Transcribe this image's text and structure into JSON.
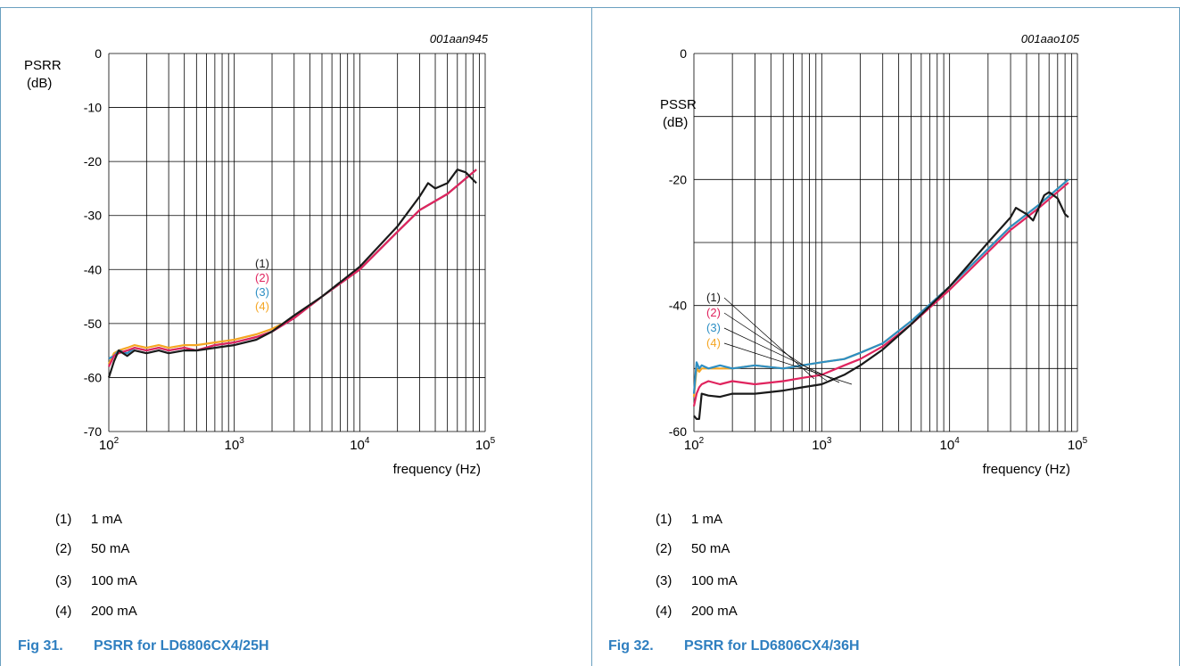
{
  "colors": {
    "curve1": "#1a1a1a",
    "curve2": "#e0245e",
    "curve3": "#2d8fc4",
    "curve4": "#f5a623",
    "caption": "#2f7fc0",
    "frame": "#6aa0c0"
  },
  "panels": [
    {
      "code": "001aan945",
      "caption_fig": "Fig 31.",
      "caption_title": "PSRR for LD6806CX4/25H",
      "legend": [
        {
          "num": "(1)",
          "label": "1 mA"
        },
        {
          "num": "(2)",
          "label": "50 mA"
        },
        {
          "num": "(3)",
          "label": "100 mA"
        },
        {
          "num": "(4)",
          "label": "200 mA"
        }
      ]
    },
    {
      "code": "001aao105",
      "caption_fig": "Fig 32.",
      "caption_title": "PSRR for LD6806CX4/36H",
      "legend": [
        {
          "num": "(1)",
          "label": "1 mA"
        },
        {
          "num": "(2)",
          "label": "50 mA"
        },
        {
          "num": "(3)",
          "label": "100 mA"
        },
        {
          "num": "(4)",
          "label": "200 mA"
        }
      ]
    }
  ],
  "chart_data": [
    {
      "type": "line",
      "title": "",
      "xlabel": "frequency (Hz)",
      "ylabel_line1": "PSRR",
      "ylabel_line2": "(dB)",
      "xscale": "log",
      "xlim": [
        100,
        100000
      ],
      "ylim": [
        -70,
        0
      ],
      "yticks": [
        0,
        -10,
        -20,
        -30,
        -40,
        -50,
        -60,
        -70
      ],
      "ytick_labels": [
        "0",
        "-10",
        "-20",
        "-30",
        "-40",
        "-50",
        "-60",
        "-70"
      ],
      "xtick_bases": [
        "10",
        "10",
        "10",
        "10"
      ],
      "xtick_exps": [
        "2",
        "3",
        "4",
        "5"
      ],
      "grid": true,
      "series_labels": [
        "(1)",
        "(2)",
        "(3)",
        "(4)"
      ],
      "series": [
        {
          "x": [
            100,
            110,
            120,
            140,
            160,
            200,
            250,
            300,
            400,
            500,
            700,
            1000,
            1500,
            2000,
            3000,
            5000,
            10000,
            20000,
            30000,
            35000,
            40000,
            50000,
            60000,
            70000,
            85000
          ],
          "values": [
            -60,
            -57,
            -55,
            -56,
            -55,
            -55.5,
            -55,
            -55.5,
            -55,
            -55,
            -54.5,
            -54,
            -53,
            -51.5,
            -48.5,
            -45,
            -39.5,
            -32,
            -26.5,
            -24,
            -25,
            -24,
            -21.5,
            -22,
            -24
          ]
        },
        {
          "x": [
            100,
            110,
            120,
            140,
            160,
            200,
            250,
            300,
            400,
            500,
            700,
            1000,
            1500,
            2000,
            3000,
            5000,
            10000,
            20000,
            30000,
            50000,
            85000
          ],
          "values": [
            -58,
            -56,
            -55.5,
            -55,
            -54.5,
            -55,
            -54.5,
            -55,
            -54.5,
            -55,
            -54,
            -53.5,
            -52.5,
            -51.5,
            -49,
            -45,
            -40,
            -33,
            -29,
            -26,
            -21.5
          ]
        },
        {
          "x": [
            100,
            110,
            120,
            140,
            160,
            200,
            250,
            300,
            400,
            500,
            700,
            1000,
            1500,
            2000,
            3000,
            5000,
            10000,
            20000,
            30000,
            50000,
            85000
          ],
          "values": [
            -56.5,
            -56,
            -55,
            -55.5,
            -54.5,
            -55,
            -54.5,
            -55,
            -54.5,
            -55,
            -54,
            -53.5,
            -52.5,
            -51.5,
            -49,
            -45,
            -40,
            -33,
            -29,
            -26,
            -21.5
          ]
        },
        {
          "x": [
            100,
            110,
            120,
            140,
            160,
            200,
            250,
            300,
            400,
            500,
            700,
            1000,
            1500,
            2000,
            3000,
            5000,
            10000,
            20000,
            30000,
            50000,
            85000
          ],
          "values": [
            -57.5,
            -55.5,
            -55,
            -54.5,
            -54,
            -54.5,
            -54,
            -54.5,
            -54,
            -54,
            -53.5,
            -53,
            -52,
            -51,
            -49,
            -45,
            -40,
            -33,
            -29,
            -26,
            -21.5
          ]
        }
      ]
    },
    {
      "type": "line",
      "title": "",
      "xlabel": "frequency (Hz)",
      "ylabel_line1": "PSSR",
      "ylabel_line2": "(dB)",
      "xscale": "log",
      "xlim": [
        100,
        100000
      ],
      "ylim": [
        -60,
        0
      ],
      "yticks": [
        0,
        -20,
        -40,
        -60
      ],
      "ytick_labels": [
        "0",
        "-20",
        "-40",
        "-60"
      ],
      "yminor": [
        -10,
        -30,
        -50
      ],
      "xtick_bases": [
        "10",
        "10",
        "10",
        "10"
      ],
      "xtick_exps": [
        "2",
        "3",
        "4",
        "5"
      ],
      "grid": true,
      "series_labels": [
        "(1)",
        "(2)",
        "(3)",
        "(4)"
      ],
      "series": [
        {
          "x": [
            100,
            105,
            110,
            115,
            130,
            160,
            200,
            300,
            500,
            700,
            1000,
            1500,
            2000,
            3000,
            5000,
            10000,
            20000,
            30000,
            33000,
            40000,
            45000,
            55000,
            60000,
            70000,
            80000,
            85000
          ],
          "values": [
            -57.5,
            -58,
            -58,
            -54,
            -54.3,
            -54.5,
            -54,
            -54,
            -53.5,
            -53,
            -52.5,
            -51,
            -49.5,
            -47,
            -43,
            -37,
            -30,
            -26,
            -24.5,
            -25.5,
            -26.5,
            -22.5,
            -22,
            -23,
            -25.5,
            -26
          ]
        },
        {
          "x": [
            100,
            105,
            110,
            115,
            130,
            160,
            200,
            300,
            500,
            700,
            1000,
            1500,
            2000,
            3000,
            5000,
            10000,
            20000,
            30000,
            50000,
            85000
          ],
          "values": [
            -56,
            -54,
            -53,
            -52.5,
            -52,
            -52.5,
            -52,
            -52.5,
            -52,
            -51.5,
            -51,
            -49.5,
            -48.5,
            -46.5,
            -43,
            -37.5,
            -31.5,
            -28,
            -24.5,
            -20.5
          ]
        },
        {
          "x": [
            100,
            105,
            110,
            115,
            130,
            160,
            200,
            300,
            500,
            700,
            1000,
            1500,
            2000,
            3000,
            5000,
            10000,
            20000,
            30000,
            50000,
            85000
          ],
          "values": [
            -54,
            -49,
            -50,
            -49.5,
            -50,
            -49.5,
            -50,
            -49.5,
            -50,
            -49.5,
            -49,
            -48.5,
            -47.5,
            -46,
            -42.5,
            -37,
            -31,
            -27.5,
            -24,
            -20
          ]
        },
        {
          "x": [
            100,
            105,
            110,
            115,
            130,
            160,
            200,
            300,
            500,
            700,
            1000,
            1500,
            2000,
            3000,
            5000,
            10000,
            20000,
            30000,
            50000,
            85000
          ],
          "values": [
            -54.5,
            -50,
            -50.5,
            -50,
            -50,
            -50,
            -50,
            -49.5,
            -50,
            -49.5,
            -49,
            -48.5,
            -47.5,
            -46,
            -42.5,
            -37,
            -31,
            -27.5,
            -24,
            -20
          ]
        }
      ]
    }
  ]
}
